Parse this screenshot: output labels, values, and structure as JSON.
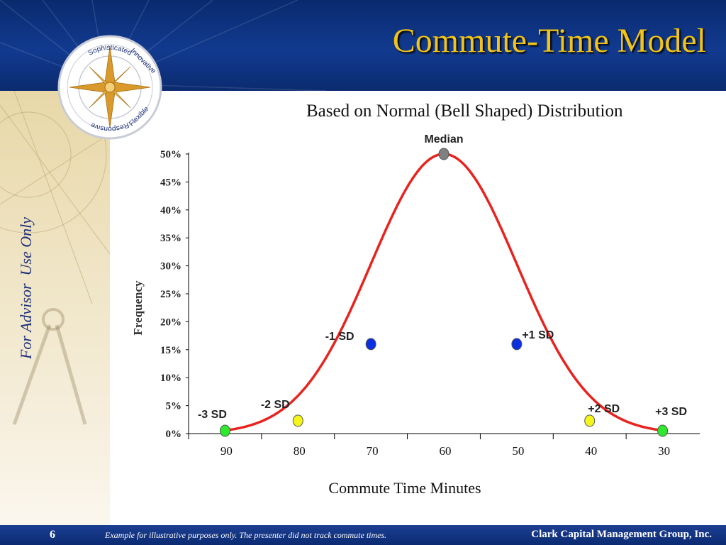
{
  "slide": {
    "title": "Commute-Time Model",
    "subtitle": "Based on Normal (Bell Shaped) Distribution",
    "watermark": "For Advisor  Use Only",
    "page_number": "6",
    "disclaimer": "Example for illustrative purposes only. The presenter did not track commute times.",
    "company": "Clark Capital Management Group, Inc.",
    "logo_words": [
      "Sophisticated",
      "Innovative",
      "Flexible",
      "Responsive"
    ]
  },
  "colors": {
    "header_blue": "#113a8f",
    "title_gold": "#f2c417",
    "curve_red": "#e8231f",
    "median_gray": "#808080",
    "sd1_blue": "#0a2fe0",
    "sd2_yellow": "#f5f51a",
    "sd3_green": "#2ee82e"
  },
  "chart_data": {
    "type": "line",
    "title": "Based on Normal (Bell Shaped) Distribution",
    "xlabel": "Commute Time Minutes",
    "ylabel": "Frequency",
    "x_tick_labels": [
      "90",
      "80",
      "70",
      "60",
      "50",
      "40",
      "30"
    ],
    "x_values": [
      90,
      80,
      70,
      60,
      50,
      40,
      30
    ],
    "xlim": [
      95,
      25
    ],
    "ylim": [
      0,
      50
    ],
    "y_tick_values": [
      0,
      5,
      10,
      15,
      20,
      25,
      30,
      35,
      40,
      45,
      50
    ],
    "y_tick_labels": [
      "0%",
      "5%",
      "10%",
      "15%",
      "20%",
      "25%",
      "30%",
      "35%",
      "40%",
      "45%",
      "50%"
    ],
    "curve": {
      "name": "Normal distribution",
      "mean": 60,
      "sd": 10,
      "peak_percent": 50
    },
    "markers": [
      {
        "label": "-3 SD",
        "x": 90,
        "y": 0.5,
        "color": "sd3_green"
      },
      {
        "label": "-2 SD",
        "x": 80,
        "y": 2.3,
        "color": "sd2_yellow"
      },
      {
        "label": "-1 SD",
        "x": 70,
        "y": 16,
        "color": "sd1_blue"
      },
      {
        "label": "Median",
        "x": 60,
        "y": 50,
        "color": "median_gray"
      },
      {
        "label": "+1 SD",
        "x": 50,
        "y": 16,
        "color": "sd1_blue"
      },
      {
        "label": "+2 SD",
        "x": 40,
        "y": 2.3,
        "color": "sd2_yellow"
      },
      {
        "label": "+3 SD",
        "x": 30,
        "y": 0.5,
        "color": "sd3_green"
      }
    ]
  }
}
